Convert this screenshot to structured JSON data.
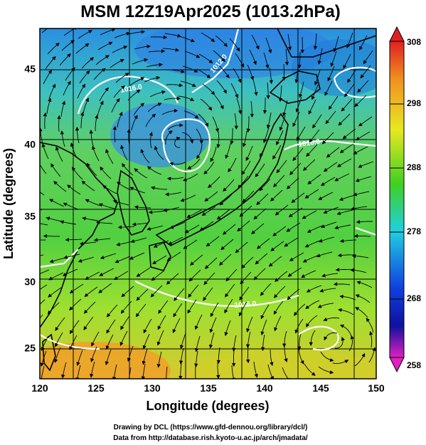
{
  "title": "MSM 12Z19Apr2025 (1013.2hPa)",
  "xlabel": "Longitude (degrees)",
  "ylabel": "Latitude (degrees)",
  "x_ticks": [
    "120",
    "125",
    "130",
    "135",
    "140",
    "145",
    "150"
  ],
  "y_ticks": [
    "25",
    "30",
    "35",
    "40",
    "45"
  ],
  "colorbar_ticks": [
    "308",
    "298",
    "288",
    "278",
    "268",
    "258"
  ],
  "isobar_labels": [
    "1012.0",
    "1016.0",
    "1016.0",
    "1016.0"
  ],
  "credits": {
    "line1": "Drawing by DCL (https://www.gfd-dennou.org/library/dcl/)",
    "line2": "Data from http://database.rish.kyoto-u.ac.jp/arch/jmadata/"
  },
  "chart_data": {
    "type": "heatmap",
    "variable_range": [
      258,
      308
    ],
    "xlim": [
      120,
      150
    ],
    "ylim": [
      22.5,
      47.5
    ],
    "grid": true,
    "overlays": [
      "temperature-shading",
      "isobars",
      "streamlines",
      "coastlines"
    ],
    "colors": {
      "magenta": "#e020c0",
      "navy": "#1010a0",
      "blue": "#1040e0",
      "cyan": "#20d0e0",
      "green": "#40d020",
      "yellow": "#e8e820",
      "orange": "#f09020",
      "red": "#e02020"
    }
  }
}
